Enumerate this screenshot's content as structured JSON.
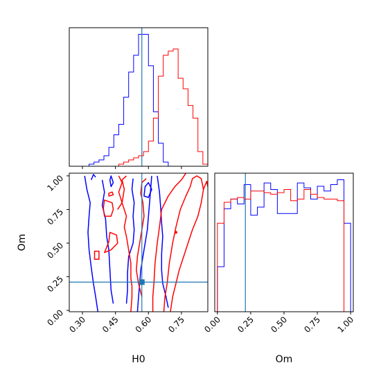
{
  "chart_data": {
    "type": "corner",
    "parameters": [
      "H0",
      "Om"
    ],
    "truths": {
      "H0": 0.57,
      "Om": 0.21
    },
    "truth_color": "#1f77b4",
    "series": [
      {
        "color": "#0000ff"
      },
      {
        "color": "#ff0000"
      }
    ],
    "panels": [
      {
        "id": "hist-H0",
        "type": "histogram",
        "param": "H0",
        "xlim": [
          0.24,
          0.87
        ],
        "bin_edges": [
          0.24,
          0.2625,
          0.285,
          0.3075,
          0.33,
          0.3525,
          0.375,
          0.3975,
          0.42,
          0.4425,
          0.465,
          0.4875,
          0.51,
          0.5325,
          0.555,
          0.5775,
          0.6,
          0.6225,
          0.645,
          0.6675,
          0.69,
          0.7125,
          0.735,
          0.7575,
          0.78,
          0.8025,
          0.825,
          0.8475,
          0.87
        ],
        "series_values": [
          [
            0,
            0,
            0,
            0,
            1,
            2,
            3,
            5,
            9,
            15,
            20,
            33,
            45,
            53,
            63,
            63,
            48,
            26,
            11,
            2,
            0,
            0,
            0,
            0,
            0,
            0,
            0,
            0
          ],
          [
            0,
            0,
            0,
            0,
            0,
            0,
            0,
            0,
            0,
            0,
            1,
            2,
            3,
            4,
            5,
            7,
            12,
            23,
            43,
            53,
            55,
            56,
            42,
            37,
            29,
            23,
            7,
            1
          ]
        ]
      },
      {
        "id": "contour-H0-Om",
        "type": "contour",
        "xparam": "H0",
        "yparam": "Om",
        "xlim": [
          0.24,
          0.87
        ],
        "ylim": [
          -0.01,
          1.02
        ],
        "xticks": [
          "0.30",
          "0.45",
          "0.60",
          "0.75"
        ],
        "yticks": [
          "0.00",
          "0.25",
          "0.50",
          "0.75",
          "1.00"
        ],
        "xlabel": "H0",
        "ylabel": "Om",
        "series_contours": [
          [
            {
              "points": [
                [
                  0.37,
                  -0.01
                ],
                [
                  0.36,
                  0.1
                ],
                [
                  0.35,
                  0.2
                ],
                [
                  0.34,
                  0.32
                ],
                [
                  0.33,
                  0.45
                ],
                [
                  0.325,
                  0.58
                ],
                [
                  0.33,
                  0.7
                ],
                [
                  0.335,
                  0.8
                ],
                [
                  0.32,
                  0.9
                ],
                [
                  0.31,
                  1.0
                ]
              ]
            },
            {
              "points": [
                [
                  0.55,
                  -0.01
                ],
                [
                  0.555,
                  0.1
                ],
                [
                  0.56,
                  0.2
                ],
                [
                  0.565,
                  0.3
                ],
                [
                  0.575,
                  0.4
                ],
                [
                  0.585,
                  0.5
                ],
                [
                  0.595,
                  0.6
                ],
                [
                  0.6,
                  0.7
                ],
                [
                  0.605,
                  0.8
                ],
                [
                  0.61,
                  0.9
                ],
                [
                  0.615,
                  1.0
                ]
              ]
            },
            {
              "points": [
                [
                  0.44,
                  0.05
                ],
                [
                  0.43,
                  0.15
                ],
                [
                  0.425,
                  0.3
                ],
                [
                  0.42,
                  0.45
                ],
                [
                  0.41,
                  0.55
                ],
                [
                  0.405,
                  0.68
                ],
                [
                  0.39,
                  0.78
                ],
                [
                  0.4,
                  0.88
                ],
                [
                  0.39,
                  0.97
                ]
              ]
            },
            {
              "points": [
                [
                  0.5,
                  0.05
                ],
                [
                  0.505,
                  0.15
                ],
                [
                  0.505,
                  0.28
                ],
                [
                  0.51,
                  0.4
                ],
                [
                  0.53,
                  0.5
                ],
                [
                  0.535,
                  0.6
                ],
                [
                  0.53,
                  0.7
                ],
                [
                  0.535,
                  0.8
                ],
                [
                  0.525,
                  0.9
                ],
                [
                  0.53,
                  0.98
                ]
              ]
            },
            {
              "points": [
                [
                  0.69,
                  0.02
                ],
                [
                  0.68,
                  0.1
                ],
                [
                  0.665,
                  0.2
                ],
                [
                  0.66,
                  0.3
                ],
                [
                  0.66,
                  0.42
                ],
                [
                  0.665,
                  0.55
                ],
                [
                  0.66,
                  0.65
                ],
                [
                  0.655,
                  0.78
                ],
                [
                  0.65,
                  0.88
                ],
                [
                  0.64,
                  1.0
                ]
              ]
            },
            {
              "points": [
                [
                  0.425,
                  0.97
                ],
                [
                  0.43,
                  0.92
                ],
                [
                  0.44,
                  0.95
                ],
                [
                  0.43,
                  1.0
                ]
              ],
              "closed": true
            },
            {
              "points": [
                [
                  0.58,
                  0.85
                ],
                [
                  0.6,
                  0.84
                ],
                [
                  0.615,
                  0.9
                ],
                [
                  0.6,
                  0.95
                ],
                [
                  0.585,
                  0.92
                ]
              ],
              "closed": true
            },
            {
              "points": [
                [
                  0.34,
                  0.97
                ],
                [
                  0.35,
                  1.01
                ],
                [
                  0.36,
                  0.99
                ]
              ]
            }
          ],
          [
            {
              "points": [
                [
                  0.52,
                  -0.01
                ],
                [
                  0.525,
                  0.1
                ],
                [
                  0.525,
                  0.18
                ],
                [
                  0.52,
                  0.24
                ],
                [
                  0.52,
                  0.35
                ],
                [
                  0.51,
                  0.45
                ],
                [
                  0.5,
                  0.55
                ],
                [
                  0.49,
                  0.62
                ],
                [
                  0.5,
                  0.7
                ],
                [
                  0.48,
                  0.8
                ],
                [
                  0.49,
                  0.9
                ],
                [
                  0.48,
                  0.97
                ],
                [
                  0.5,
                  1.0
                ]
              ]
            },
            {
              "points": [
                [
                  0.7,
                  -0.01
                ],
                [
                  0.71,
                  0.1
                ],
                [
                  0.725,
                  0.2
                ],
                [
                  0.74,
                  0.3
                ],
                [
                  0.76,
                  0.4
                ],
                [
                  0.78,
                  0.5
                ],
                [
                  0.8,
                  0.6
                ],
                [
                  0.825,
                  0.7
                ],
                [
                  0.84,
                  0.8
                ],
                [
                  0.85,
                  0.9
                ],
                [
                  0.865,
                  0.96
                ],
                [
                  0.87,
                  0.92
                ]
              ]
            },
            {
              "points": [
                [
                  0.62,
                  -0.01
                ],
                [
                  0.62,
                  0.1
                ],
                [
                  0.625,
                  0.2
                ],
                [
                  0.63,
                  0.35
                ],
                [
                  0.64,
                  0.5
                ],
                [
                  0.65,
                  0.62
                ],
                [
                  0.66,
                  0.75
                ],
                [
                  0.69,
                  0.85
                ],
                [
                  0.72,
                  0.92
                ],
                [
                  0.75,
                  0.97
                ],
                [
                  0.77,
                  1.02
                ]
              ]
            },
            {
              "points": [
                [
                  0.67,
                  -0.01
                ],
                [
                  0.675,
                  0.1
                ],
                [
                  0.685,
                  0.2
                ],
                [
                  0.695,
                  0.35
                ],
                [
                  0.71,
                  0.5
                ],
                [
                  0.725,
                  0.62
                ],
                [
                  0.745,
                  0.75
                ],
                [
                  0.77,
                  0.85
                ],
                [
                  0.79,
                  0.92
                ],
                [
                  0.8,
                  0.98
                ],
                [
                  0.82,
                  1.0
                ],
                [
                  0.84,
                  0.98
                ],
                [
                  0.85,
                  0.9
                ]
              ]
            },
            {
              "points": [
                [
                  0.57,
                  0.1
                ],
                [
                  0.555,
                  0.2
                ],
                [
                  0.545,
                  0.3
                ],
                [
                  0.55,
                  0.4
                ],
                [
                  0.56,
                  0.5
                ],
                [
                  0.57,
                  0.6
                ],
                [
                  0.58,
                  0.7
                ],
                [
                  0.575,
                  0.8
                ],
                [
                  0.565,
                  0.87
                ],
                [
                  0.57,
                  0.95
                ],
                [
                  0.59,
                  0.98
                ]
              ]
            },
            {
              "points": [
                [
                  0.4,
                  0.7
                ],
                [
                  0.43,
                  0.7
                ],
                [
                  0.44,
                  0.75
                ],
                [
                  0.435,
                  0.8
                ],
                [
                  0.4,
                  0.82
                ],
                [
                  0.395,
                  0.76
                ]
              ],
              "closed": true
            },
            {
              "points": [
                [
                  0.4,
                  0.43
                ],
                [
                  0.43,
                  0.45
                ],
                [
                  0.46,
                  0.5
                ],
                [
                  0.455,
                  0.56
                ],
                [
                  0.425,
                  0.58
                ],
                [
                  0.42,
                  0.51
                ]
              ],
              "closed": true
            },
            {
              "points": [
                [
                  0.355,
                  0.38
                ],
                [
                  0.375,
                  0.38
                ],
                [
                  0.375,
                  0.44
                ],
                [
                  0.355,
                  0.44
                ]
              ],
              "closed": true
            },
            {
              "points": [
                [
                  0.42,
                  0.85
                ],
                [
                  0.44,
                  0.86
                ],
                [
                  0.435,
                  0.88
                ],
                [
                  0.42,
                  0.87
                ]
              ],
              "closed": true
            },
            {
              "points": [
                [
                  0.46,
                  0.75
                ],
                [
                  0.48,
                  0.8
                ],
                [
                  0.465,
                  0.88
                ],
                [
                  0.48,
                  0.95
                ],
                [
                  0.465,
                  1.0
                ]
              ]
            }
          ]
        ],
        "series_points": [
          [
            [
              0.573,
              0.21
            ]
          ],
          [
            [
              0.725,
              0.58
            ]
          ]
        ]
      },
      {
        "id": "hist-Om",
        "type": "histogram",
        "param": "Om",
        "xlim": [
          -0.02,
          1.02
        ],
        "xticks": [
          "0.00",
          "0.25",
          "0.50",
          "0.75",
          "1.00"
        ],
        "xlabel": "Om",
        "bin_edges": [
          0,
          0.05,
          0.1,
          0.15,
          0.2,
          0.25,
          0.3,
          0.35,
          0.4,
          0.45,
          0.5,
          0.55,
          0.6,
          0.65,
          0.7,
          0.75,
          0.8,
          0.85,
          0.9,
          0.95,
          1.0
        ],
        "series_values": [
          [
            28,
            64,
            70,
            67,
            79,
            60,
            65,
            80,
            76,
            61,
            61,
            61,
            80,
            77,
            70,
            78,
            75,
            79,
            82,
            55
          ],
          [
            55,
            68,
            70,
            71,
            70,
            75,
            75,
            74,
            73,
            74,
            76,
            69,
            70,
            76,
            73,
            71,
            70,
            70,
            69,
            0
          ]
        ]
      }
    ]
  }
}
